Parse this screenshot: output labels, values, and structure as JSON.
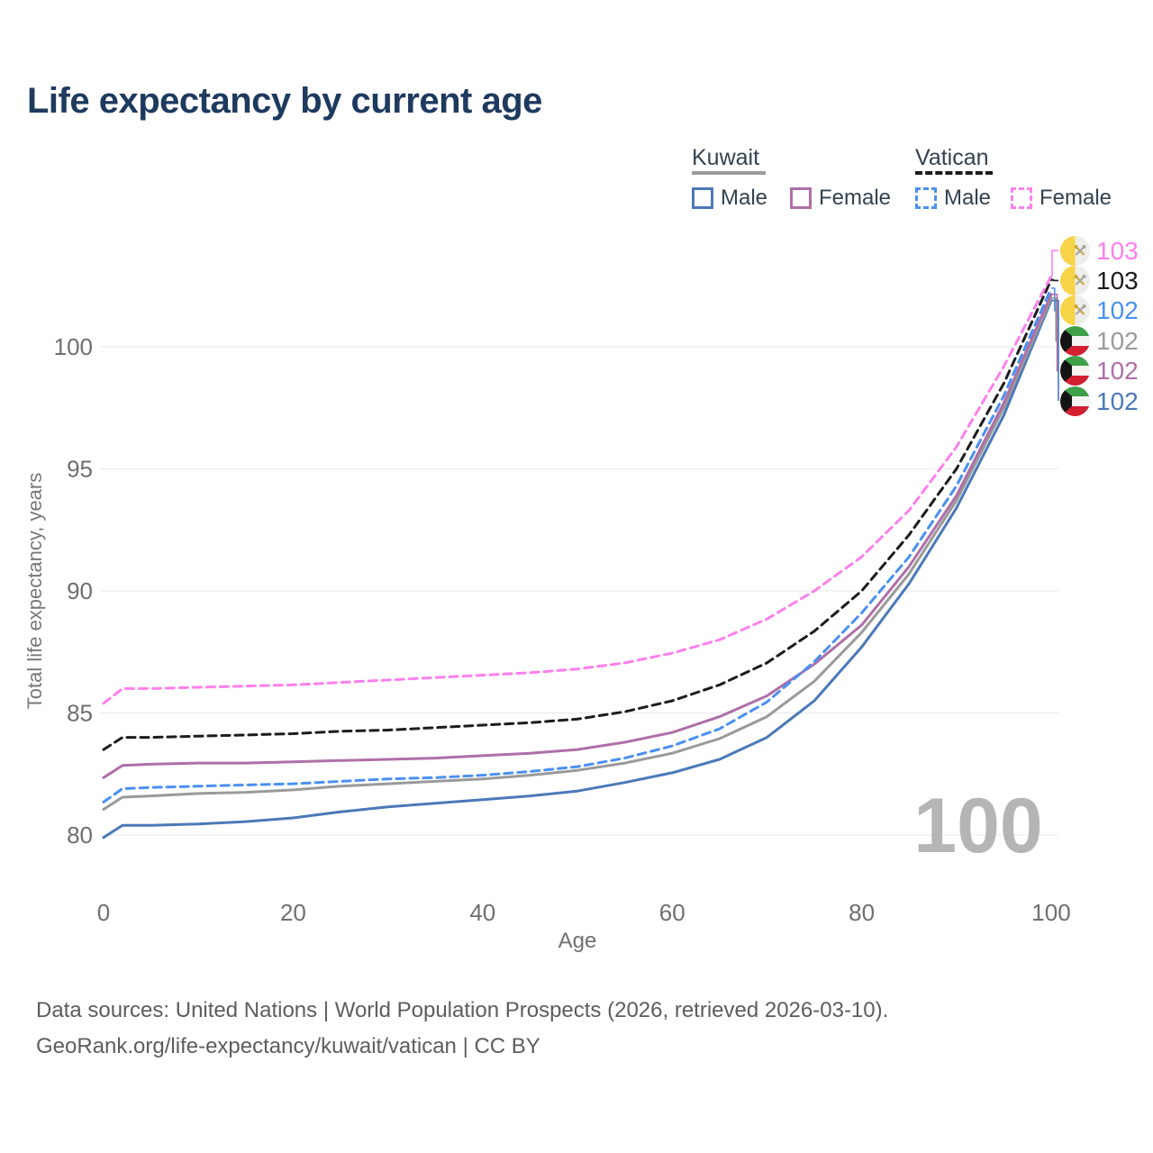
{
  "title": "Life expectancy by current age",
  "watermark": "100",
  "legend": {
    "groups": [
      {
        "label": "Kuwait",
        "line_style": "solid",
        "underline_color": "#9a9a9a",
        "items": [
          {
            "label": "Male",
            "color": "#4b79b8",
            "dashed": false
          },
          {
            "label": "Female",
            "color": "#af6fa8",
            "dashed": false
          }
        ]
      },
      {
        "label": "Vatican",
        "line_style": "dashed",
        "underline_color": "#1c1c1c",
        "items": [
          {
            "label": "Male",
            "color": "#4a90f0",
            "dashed": true
          },
          {
            "label": "Female",
            "color": "#fc80ec",
            "dashed": true
          }
        ]
      }
    ]
  },
  "footer": {
    "line1": "Data sources: United Nations | World Population Prospects (2026, retrieved 2026-03-10).",
    "line2": "GeoRank.org/life-expectancy/kuwait/vatican | CC BY"
  },
  "chart_data": {
    "type": "line",
    "title": "Life expectancy by current age",
    "xlabel": "Age",
    "ylabel": "Total life expectancy, years",
    "x_ticks": [
      0,
      20,
      40,
      60,
      80,
      100
    ],
    "y_ticks": [
      80,
      85,
      90,
      95,
      100
    ],
    "xlim": [
      0,
      100
    ],
    "ylim": [
      79.5,
      104
    ],
    "grid": "horizontal",
    "legend_position": "top-right",
    "x": [
      0,
      2,
      5,
      10,
      15,
      20,
      25,
      30,
      35,
      40,
      45,
      50,
      55,
      60,
      65,
      70,
      75,
      80,
      85,
      90,
      95,
      100
    ],
    "series": [
      {
        "id": "kuwait-male",
        "name": "Kuwait — Male",
        "color": "#4b79b8",
        "dashed": false,
        "values": [
          79.9,
          80.4,
          80.4,
          80.45,
          80.55,
          80.7,
          80.95,
          81.15,
          81.3,
          81.45,
          81.6,
          81.8,
          82.15,
          82.55,
          83.1,
          84.0,
          85.5,
          87.7,
          90.3,
          93.4,
          97.2,
          101.9
        ]
      },
      {
        "id": "kuwait",
        "name": "Kuwait — Both sexes",
        "color": "#9a9a9a",
        "dashed": false,
        "values": [
          81.05,
          81.55,
          81.6,
          81.7,
          81.75,
          81.85,
          82.0,
          82.1,
          82.2,
          82.3,
          82.45,
          82.65,
          82.95,
          83.35,
          83.95,
          84.85,
          86.3,
          88.3,
          90.7,
          93.7,
          97.5,
          102.0
        ]
      },
      {
        "id": "kuwait-female",
        "name": "Kuwait — Female",
        "color": "#af6fa8",
        "dashed": false,
        "values": [
          82.35,
          82.85,
          82.9,
          82.95,
          82.95,
          83.0,
          83.05,
          83.1,
          83.15,
          83.25,
          83.35,
          83.5,
          83.8,
          84.2,
          84.85,
          85.7,
          87.0,
          88.6,
          91.0,
          93.9,
          97.7,
          102.15
        ]
      },
      {
        "id": "vatican-male",
        "name": "Vatican — Male",
        "color": "#4a90f0",
        "dashed": true,
        "values": [
          81.35,
          81.9,
          81.95,
          82.0,
          82.05,
          82.1,
          82.2,
          82.3,
          82.35,
          82.45,
          82.6,
          82.8,
          83.15,
          83.65,
          84.35,
          85.45,
          87.1,
          89.1,
          91.4,
          94.3,
          98.0,
          102.4
        ]
      },
      {
        "id": "vatican",
        "name": "Vatican — Both sexes",
        "color": "#1c1c1c",
        "dashed": true,
        "values": [
          83.5,
          84.0,
          84.0,
          84.05,
          84.1,
          84.15,
          84.25,
          84.3,
          84.4,
          84.5,
          84.6,
          84.75,
          85.05,
          85.5,
          86.15,
          87.05,
          88.35,
          90.0,
          92.3,
          95.0,
          98.5,
          102.75
        ]
      },
      {
        "id": "vatican-female",
        "name": "Vatican — Female",
        "color": "#fc80ec",
        "dashed": true,
        "values": [
          85.4,
          86.0,
          86.0,
          86.05,
          86.1,
          86.15,
          86.25,
          86.35,
          86.45,
          86.55,
          86.65,
          86.8,
          87.05,
          87.45,
          88.0,
          88.85,
          90.0,
          91.4,
          93.3,
          95.9,
          99.2,
          102.9
        ]
      }
    ],
    "right_labels": [
      {
        "value": "103",
        "flag": "vatican",
        "series": "vatican-female",
        "color": "#fc80ec"
      },
      {
        "value": "103",
        "flag": "vatican",
        "series": "vatican",
        "color": "#1c1c1c"
      },
      {
        "value": "102",
        "flag": "vatican",
        "series": "vatican-male",
        "color": "#4a90f0"
      },
      {
        "value": "102",
        "flag": "kuwait",
        "series": "kuwait",
        "color": "#9a9a9a"
      },
      {
        "value": "102",
        "flag": "kuwait",
        "series": "kuwait-female",
        "color": "#af6fa8"
      },
      {
        "value": "102",
        "flag": "kuwait",
        "series": "kuwait-male",
        "color": "#4b79b8"
      }
    ]
  }
}
